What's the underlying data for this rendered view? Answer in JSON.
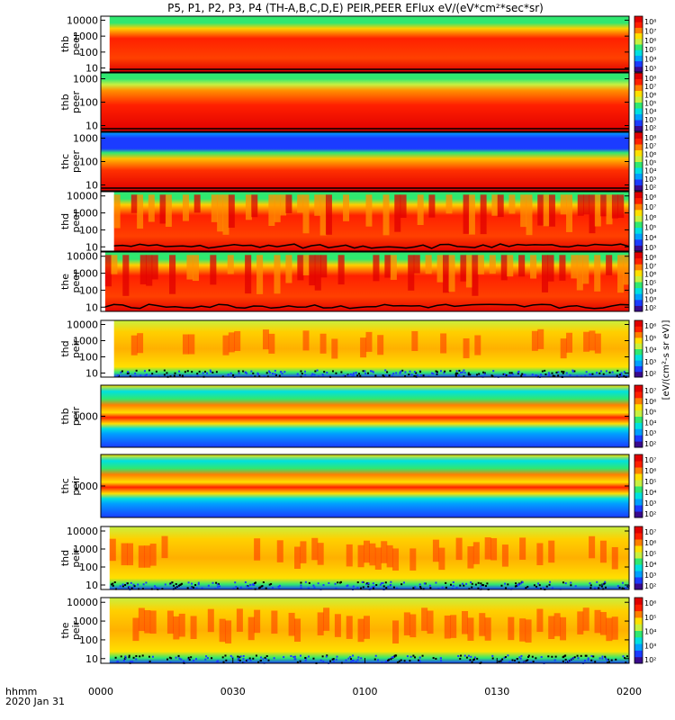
{
  "chart_data": {
    "type": "heatmap",
    "title": "P5, P1, P2, P3, P4 (TH-A,B,C,D,E) PEIR,PEER EFlux eV/(eV*cm²*sec*sr)",
    "x_axis": {
      "ticks": [
        "0000",
        "0030",
        "0100",
        "0130",
        "0200"
      ],
      "corner_label_line1": "hhmm",
      "corner_label_line2": "2020 Jan 31"
    },
    "colorbar_label": "[eV/(cm²-s sr eV)]",
    "panels": [
      {
        "probe": "thb",
        "product": "peer",
        "ylabel": [
          "thb",
          "peer"
        ],
        "yticks": [
          "10",
          "100",
          "1000",
          "10000"
        ],
        "log_scale": true,
        "cbar_ticks": [
          "10⁸",
          "10⁷",
          "10⁶",
          "10⁵",
          "10⁴",
          "10³"
        ],
        "data_start_hhmm": "0002"
      },
      {
        "probe": "thb",
        "product": "peer",
        "ylabel": [
          "thb",
          "peer"
        ],
        "yticks": [
          "10",
          "100",
          "1000"
        ],
        "log_scale": true,
        "cbar_ticks": [
          "10⁸",
          "10⁷",
          "10⁶",
          "10⁵",
          "10⁴",
          "10³",
          "10²"
        ],
        "data_start_hhmm": "0000"
      },
      {
        "probe": "thc",
        "product": "peer",
        "ylabel": [
          "thc",
          "peer"
        ],
        "yticks": [
          "10",
          "100",
          "1000"
        ],
        "log_scale": true,
        "cbar_ticks": [
          "10⁸",
          "10⁷",
          "10⁶",
          "10⁵",
          "10⁴",
          "10³",
          "10²"
        ],
        "data_start_hhmm": "0000"
      },
      {
        "probe": "thd",
        "product": "peer",
        "ylabel": [
          "thd",
          "peer"
        ],
        "yticks": [
          "10",
          "100",
          "1000",
          "10000"
        ],
        "log_scale": true,
        "cbar_ticks": [
          "10⁸",
          "10⁷",
          "10⁶",
          "10⁵",
          "10⁴",
          "10³"
        ],
        "data_start_hhmm": "0003"
      },
      {
        "probe": "the",
        "product": "peer",
        "ylabel": [
          "the",
          "peer"
        ],
        "yticks": [
          "10",
          "100",
          "1000",
          "10000"
        ],
        "log_scale": true,
        "cbar_ticks": [
          "10⁸",
          "10⁷",
          "10⁶",
          "10⁵",
          "10⁴",
          "10³",
          "10²"
        ],
        "data_start_hhmm": "0001"
      },
      {
        "probe": "thd",
        "product": "peir",
        "ylabel": [
          "thd",
          "peir"
        ],
        "yticks": [
          "10",
          "100",
          "1000",
          "10000"
        ],
        "log_scale": true,
        "cbar_ticks": [
          "10⁶",
          "10⁵",
          "10⁴",
          "10³",
          "10²"
        ],
        "data_start_hhmm": "0003"
      },
      {
        "probe": "thb",
        "product": "peir",
        "ylabel": [
          "thb",
          "peir"
        ],
        "yticks": [
          "1000"
        ],
        "log_scale": true,
        "cbar_ticks": [
          "10⁷",
          "10⁶",
          "10⁵",
          "10⁴",
          "10³",
          "10²"
        ],
        "data_start_hhmm": "0000"
      },
      {
        "probe": "thc",
        "product": "peir",
        "ylabel": [
          "thc",
          "peir"
        ],
        "yticks": [
          "1000"
        ],
        "log_scale": true,
        "cbar_ticks": [
          "10⁷",
          "10⁶",
          "10⁵",
          "10⁴",
          "10³",
          "10²"
        ],
        "data_start_hhmm": "0000"
      },
      {
        "probe": "thd",
        "product": "peir",
        "ylabel": [
          "thd",
          "peir"
        ],
        "yticks": [
          "10",
          "100",
          "1000",
          "10000"
        ],
        "log_scale": true,
        "cbar_ticks": [
          "10⁷",
          "10⁶",
          "10⁵",
          "10⁴",
          "10³",
          "10²"
        ],
        "data_start_hhmm": "0002"
      },
      {
        "probe": "the",
        "product": "peir",
        "ylabel": [
          "the",
          "peir"
        ],
        "yticks": [
          "10",
          "100",
          "1000",
          "10000"
        ],
        "log_scale": true,
        "cbar_ticks": [
          "10⁶",
          "10⁵",
          "10⁴",
          "10³",
          "10²"
        ],
        "data_start_hhmm": "0002"
      }
    ],
    "colormap": [
      "#3a0a8c",
      "#1b3cff",
      "#00a0ff",
      "#00e0e0",
      "#30e870",
      "#c8f040",
      "#ffe000",
      "#ff8000",
      "#ff2000",
      "#e00000"
    ]
  }
}
